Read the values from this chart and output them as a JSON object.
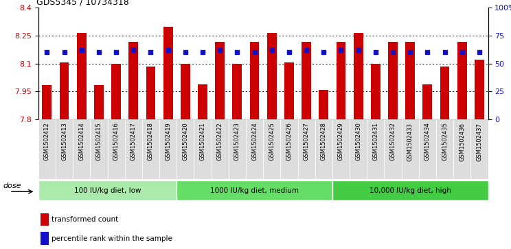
{
  "title": "GDS5345 / 10734318",
  "samples": [
    "GSM1502412",
    "GSM1502413",
    "GSM1502414",
    "GSM1502415",
    "GSM1502416",
    "GSM1502417",
    "GSM1502418",
    "GSM1502419",
    "GSM1502420",
    "GSM1502421",
    "GSM1502422",
    "GSM1502423",
    "GSM1502424",
    "GSM1502425",
    "GSM1502426",
    "GSM1502427",
    "GSM1502428",
    "GSM1502429",
    "GSM1502430",
    "GSM1502431",
    "GSM1502432",
    "GSM1502433",
    "GSM1502434",
    "GSM1502435",
    "GSM1502436",
    "GSM1502437"
  ],
  "bar_values": [
    7.985,
    8.105,
    8.265,
    7.985,
    8.1,
    8.215,
    8.085,
    8.295,
    8.1,
    7.99,
    8.215,
    8.1,
    8.215,
    8.265,
    8.105,
    8.215,
    7.96,
    8.215,
    8.265,
    8.1,
    8.215,
    8.215,
    7.99,
    8.085,
    8.215,
    8.12
  ],
  "percentile_values": [
    60,
    60,
    62,
    60,
    60,
    62,
    60,
    62,
    60,
    60,
    62,
    60,
    60,
    62,
    60,
    62,
    60,
    62,
    62,
    60,
    60,
    60,
    60,
    60,
    60,
    60
  ],
  "ylim_left": [
    7.8,
    8.4
  ],
  "ylim_right": [
    0,
    100
  ],
  "yticks_left": [
    7.8,
    7.95,
    8.1,
    8.25,
    8.4
  ],
  "ytick_labels_left": [
    "7.8",
    "7.95",
    "8.1",
    "8.25",
    "8.4"
  ],
  "yticks_right": [
    0,
    25,
    50,
    75,
    100
  ],
  "ytick_labels_right": [
    "0",
    "25",
    "50",
    "75",
    "100%"
  ],
  "grid_values": [
    7.95,
    8.1,
    8.25
  ],
  "bar_color": "#CC0000",
  "dot_color": "#1111CC",
  "bar_bottom": 7.8,
  "groups": [
    {
      "label": "100 IU/kg diet, low",
      "start": 0,
      "end": 8
    },
    {
      "label": "1000 IU/kg diet, medium",
      "start": 8,
      "end": 17
    },
    {
      "label": "10,000 IU/kg diet, high",
      "start": 17,
      "end": 26
    }
  ],
  "group_colors": [
    "#AAEAAA",
    "#66DD66",
    "#44CC44"
  ],
  "dose_label": "dose",
  "legend_bar_label": "transformed count",
  "legend_dot_label": "percentile rank within the sample",
  "xticklabel_bg": "#DDDDDD"
}
